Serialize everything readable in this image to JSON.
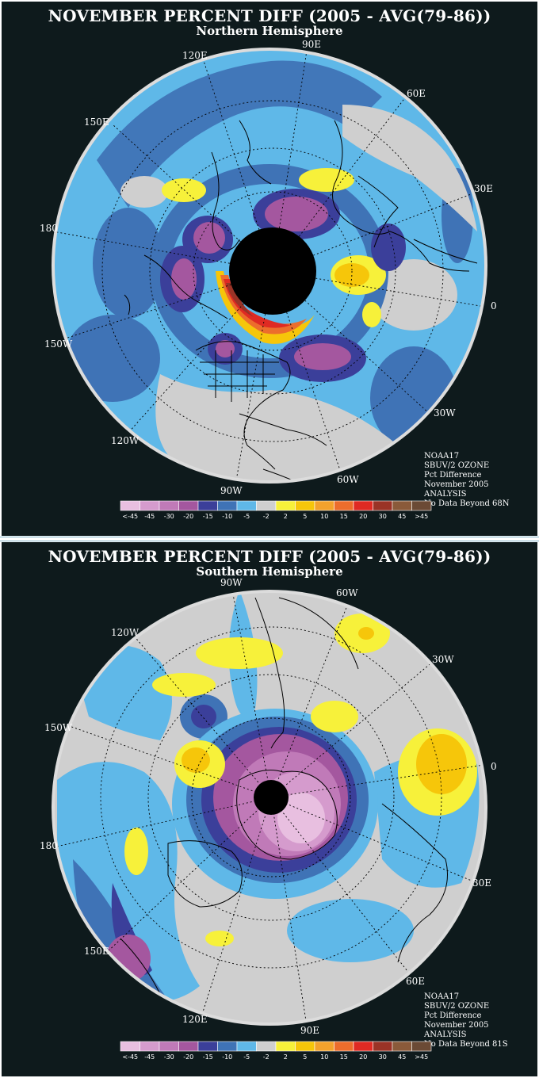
{
  "north": {
    "title": "NOVEMBER PERCENT DIFF (2005 - AVG(79-86))",
    "subtitle": "Northern Hemisphere",
    "lon_labels": [
      "90E",
      "60E",
      "30E",
      "0",
      "30W",
      "60W",
      "90W",
      "120W",
      "150W",
      "180",
      "150E",
      "120E"
    ],
    "info": [
      "NOAA17",
      "SBUV/2 OZONE",
      "Pct Difference",
      "November 2005",
      "ANALYSIS",
      "No Data Beyond 68N"
    ]
  },
  "south": {
    "title": "NOVEMBER PERCENT DIFF (2005 - AVG(79-86))",
    "subtitle": "Southern Hemisphere",
    "lon_labels": [
      "90W",
      "60W",
      "30W",
      "0",
      "30E",
      "60E",
      "90E",
      "120E",
      "150E",
      "180",
      "150W",
      "120W"
    ],
    "info": [
      "NOAA17",
      "SBUV/2 OZONE",
      "Pct Difference",
      "November 2005",
      "ANALYSIS",
      "No Data Beyond 81S"
    ]
  },
  "legend": {
    "labels": [
      "<-45",
      "-45",
      "-30",
      "-20",
      "-15",
      "-10",
      "-5",
      "-2",
      "2",
      "5",
      "10",
      "15",
      "20",
      "30",
      "45",
      ">45"
    ],
    "colors": [
      "#e8bfe0",
      "#d59bcd",
      "#c07ab8",
      "#a4579f",
      "#3b3f9a",
      "#3f73b6",
      "#5fb8e8",
      "#cfcfcf",
      "#f7f13a",
      "#f6c60a",
      "#f3a22c",
      "#ec6d2c",
      "#df2a23",
      "#9a3326",
      "#8a5a3a",
      "#6b4a35"
    ]
  },
  "colors": {
    "background": "#0e1a1c",
    "ocean_base": "#5fb8e8",
    "grey_band": "#cfcfcf",
    "polar_cap": "#000000",
    "rim": "#dcdcdc"
  }
}
